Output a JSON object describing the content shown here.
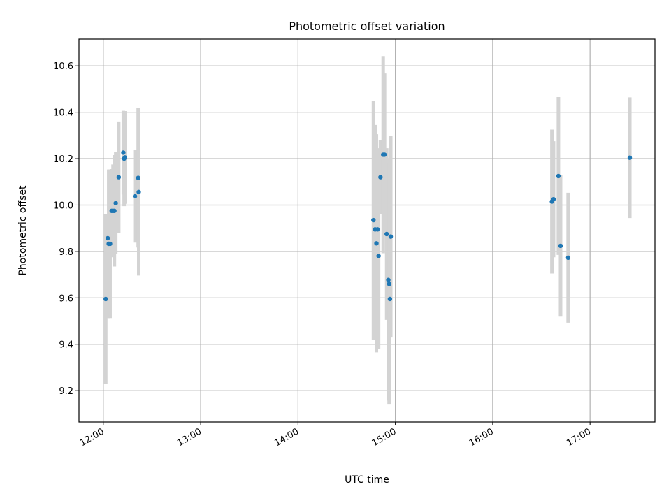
{
  "chart_data": {
    "type": "scatter",
    "title": "Photometric offset variation",
    "xlabel": "UTC time",
    "ylabel": "Photometric offset",
    "xlim": [
      "11:45",
      "17:40"
    ],
    "ylim": [
      9.065,
      10.715
    ],
    "x_ticks": [
      "12:00",
      "13:00",
      "14:00",
      "15:00",
      "16:00",
      "17:00"
    ],
    "y_ticks": [
      9.2,
      9.4,
      9.6,
      9.8,
      10.0,
      10.2,
      10.4,
      10.6
    ],
    "grid": true,
    "marker_color": "#1f77b4",
    "errorbar_color": "#d3d3d3",
    "points": [
      {
        "t": "12:01:30",
        "y": 9.595,
        "err": 0.365
      },
      {
        "t": "12:02:45",
        "y": 9.857,
        "err": 0.1
      },
      {
        "t": "12:03:20",
        "y": 9.833,
        "err": 0.32
      },
      {
        "t": "12:04:10",
        "y": 9.833,
        "err": 0.32
      },
      {
        "t": "12:05:10",
        "y": 9.975,
        "err": 0.18
      },
      {
        "t": "12:06:00",
        "y": 9.975,
        "err": 0.2
      },
      {
        "t": "12:06:50",
        "y": 9.975,
        "err": 0.24
      },
      {
        "t": "12:07:40",
        "y": 10.008,
        "err": 0.22
      },
      {
        "t": "12:09:30",
        "y": 10.12,
        "err": 0.24
      },
      {
        "t": "12:12:20",
        "y": 10.226,
        "err": 0.18
      },
      {
        "t": "12:12:50",
        "y": 10.2,
        "err": 0.205
      },
      {
        "t": "12:13:20",
        "y": 10.205,
        "err": 0.2
      },
      {
        "t": "12:19:30",
        "y": 10.038,
        "err": 0.2
      },
      {
        "t": "12:21:30",
        "y": 10.117,
        "err": 0.3
      },
      {
        "t": "12:21:50",
        "y": 10.056,
        "err": 0.36
      },
      {
        "t": "14:46:30",
        "y": 9.935,
        "err": 0.515
      },
      {
        "t": "14:47:30",
        "y": 9.895,
        "err": 0.45
      },
      {
        "t": "14:48:20",
        "y": 9.835,
        "err": 0.47
      },
      {
        "t": "14:49:00",
        "y": 9.895,
        "err": 0.35
      },
      {
        "t": "14:49:40",
        "y": 9.78,
        "err": 0.4
      },
      {
        "t": "14:50:50",
        "y": 10.12,
        "err": 0.16
      },
      {
        "t": "14:52:30",
        "y": 10.217,
        "err": 0.425
      },
      {
        "t": "14:53:20",
        "y": 10.217,
        "err": 0.35
      },
      {
        "t": "14:54:40",
        "y": 9.875,
        "err": 0.37
      },
      {
        "t": "14:55:40",
        "y": 9.677,
        "err": 0.52
      },
      {
        "t": "14:56:10",
        "y": 9.66,
        "err": 0.52
      },
      {
        "t": "14:56:40",
        "y": 9.595,
        "err": 0.16
      },
      {
        "t": "14:57:10",
        "y": 9.864,
        "err": 0.435
      },
      {
        "t": "16:36:30",
        "y": 10.015,
        "err": 0.31
      },
      {
        "t": "16:37:30",
        "y": 10.025,
        "err": 0.25
      },
      {
        "t": "16:40:30",
        "y": 10.125,
        "err": 0.34
      },
      {
        "t": "16:41:50",
        "y": 9.824,
        "err": 0.305
      },
      {
        "t": "16:46:30",
        "y": 9.773,
        "err": 0.28
      },
      {
        "t": "17:24:30",
        "y": 10.204,
        "err": 0.26
      }
    ]
  }
}
